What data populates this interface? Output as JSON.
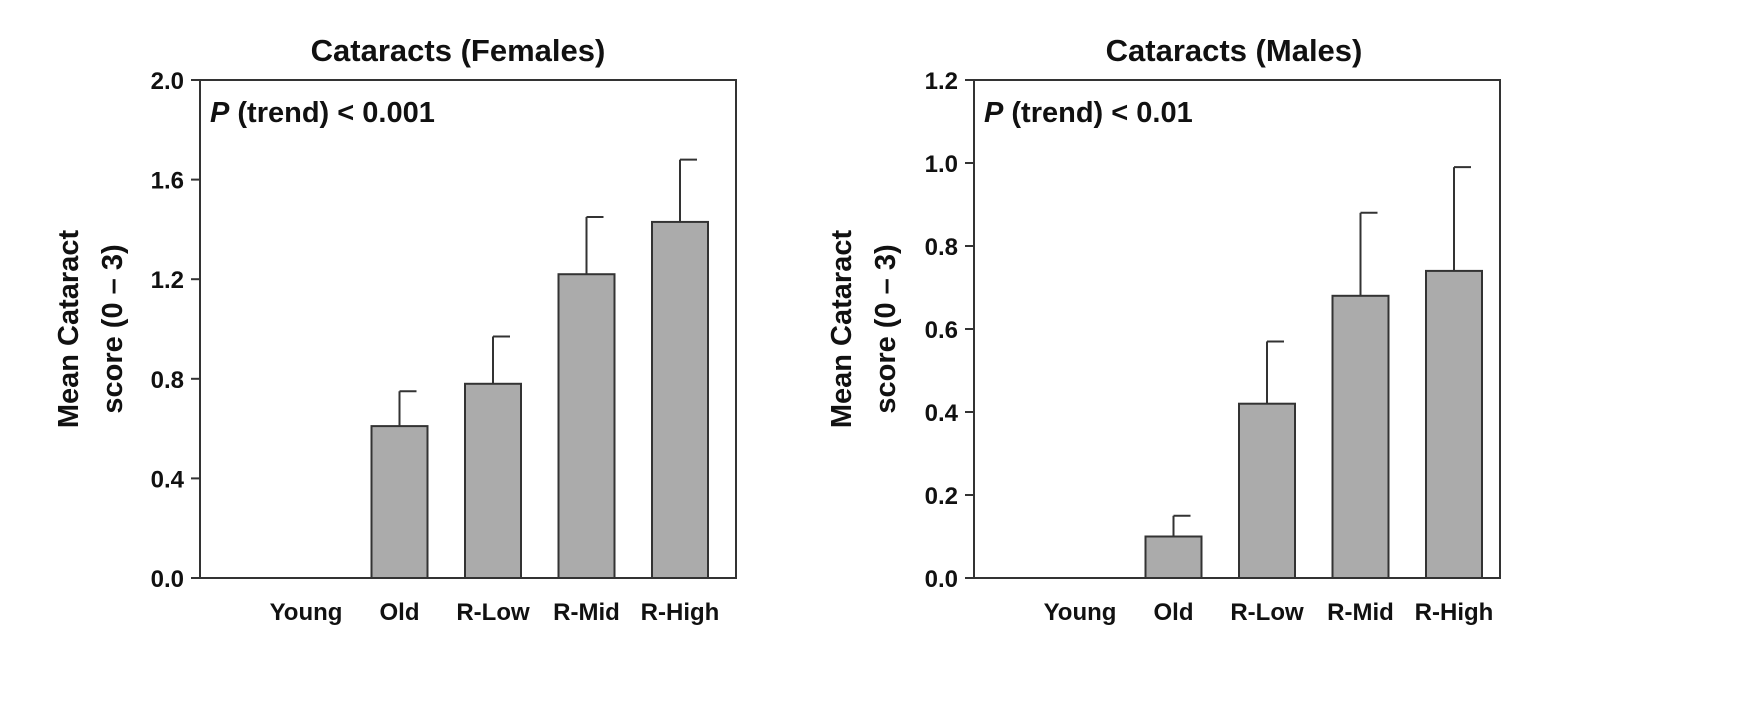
{
  "chart_data": [
    {
      "type": "bar",
      "title": "Cataracts (Females)",
      "ylabel_lines": [
        "Mean Cataract",
        "score (0 – 3)"
      ],
      "annotation": {
        "italic": "P",
        "rest": " (trend) < 0.001"
      },
      "categories": [
        "Young",
        "Old",
        "R-Low",
        "R-Mid",
        "R-High"
      ],
      "values": [
        0.0,
        0.61,
        0.78,
        1.22,
        1.43
      ],
      "errors": [
        0.0,
        0.14,
        0.19,
        0.23,
        0.25
      ],
      "ylim": [
        0,
        2.0
      ],
      "yticks": [
        0.0,
        0.4,
        0.8,
        1.2,
        1.6,
        2.0
      ],
      "ytick_labels": [
        "0.0",
        "0.4",
        "0.8",
        "1.2",
        "1.6",
        "2.0"
      ]
    },
    {
      "type": "bar",
      "title": "Cataracts (Males)",
      "ylabel_lines": [
        "Mean Cataract",
        "score (0 – 3)"
      ],
      "annotation": {
        "italic": "P",
        "rest": " (trend) < 0.01"
      },
      "categories": [
        "Young",
        "Old",
        "R-Low",
        "R-Mid",
        "R-High"
      ],
      "values": [
        0.0,
        0.1,
        0.42,
        0.68,
        0.74
      ],
      "errors": [
        0.0,
        0.05,
        0.15,
        0.2,
        0.25
      ],
      "ylim": [
        0,
        1.2
      ],
      "yticks": [
        0.0,
        0.2,
        0.4,
        0.6,
        0.8,
        1.0,
        1.2
      ],
      "ytick_labels": [
        "0.0",
        "0.2",
        "0.4",
        "0.6",
        "0.8",
        "1.0",
        "1.2"
      ]
    }
  ],
  "colors": {
    "bar_fill": "#ababab",
    "bar_stroke": "#333333",
    "axis": "#333333"
  }
}
